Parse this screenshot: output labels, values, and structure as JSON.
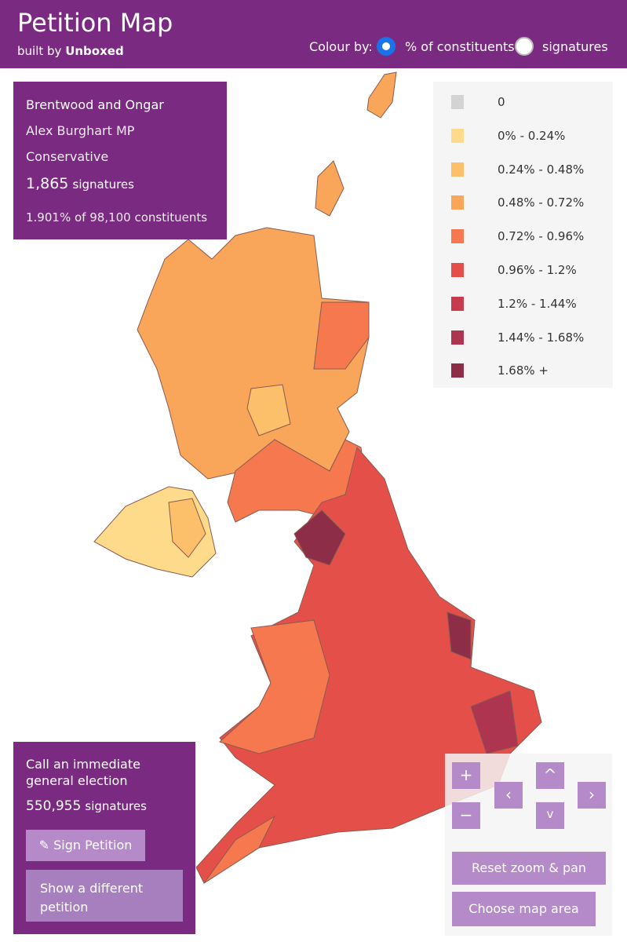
{
  "header": {
    "title": "Petition Map",
    "built_by": "built by",
    "author": "Unboxed",
    "colour_by": "Colour by:",
    "options": [
      "% of constituents",
      "signatures"
    ],
    "selected": 0
  },
  "info": {
    "constituency": "Brentwood and Ongar",
    "mp": "Alex Burghart MP",
    "party": "Conservative",
    "signatures": "1,865",
    "signatures_label": "signatures",
    "share": "1.901% of 98,100 constituents"
  },
  "legend": {
    "items": [
      {
        "label": "0",
        "color": "#d3d3d3"
      },
      {
        "label": "0% - 0.24%",
        "color": "#fedb8b"
      },
      {
        "label": "0.24% - 0.48%",
        "color": "#fdc06a"
      },
      {
        "label": "0.48% - 0.72%",
        "color": "#f9a55a"
      },
      {
        "label": "0.72% - 0.96%",
        "color": "#f6784f"
      },
      {
        "label": "0.96% - 1.2%",
        "color": "#e45049"
      },
      {
        "label": "1.2% - 1.44%",
        "color": "#c83b4f"
      },
      {
        "label": "1.44% - 1.68%",
        "color": "#ad3550"
      },
      {
        "label": "1.68% +",
        "color": "#8e2d48"
      }
    ]
  },
  "petition": {
    "title": "Call an immediate general election",
    "signatures": "550,955",
    "signatures_label": "signatures",
    "sign": "Sign Petition",
    "different": "Show a different petition"
  },
  "controls": {
    "zoom_in": "+",
    "zoom_out": "−",
    "up": "^",
    "down": "v",
    "left": "‹",
    "right": "›",
    "reset": "Reset zoom & pan",
    "choose": "Choose map area"
  }
}
